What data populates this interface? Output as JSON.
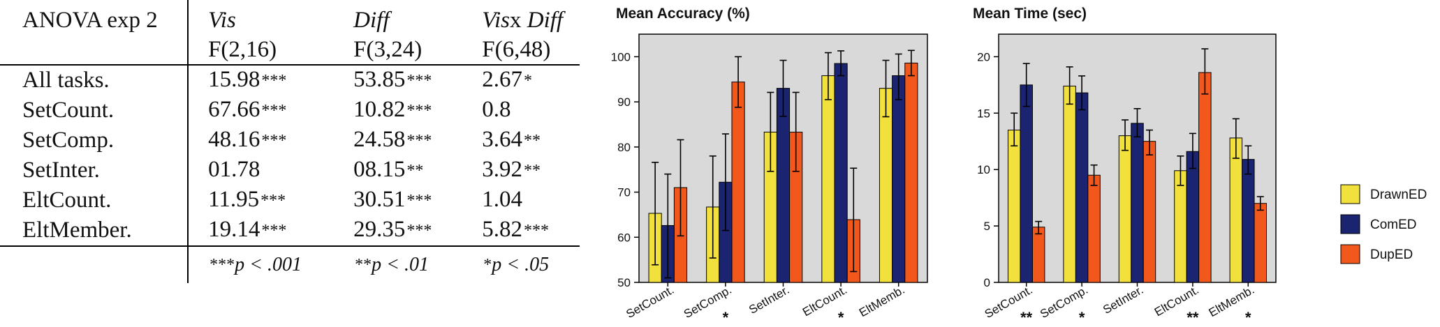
{
  "anova": {
    "header": {
      "title": "ANOVA exp 2",
      "vis": "Vis",
      "diff": "Diff",
      "interaction_a": "Vis",
      "interaction_b": "x",
      "interaction_c": "Diff",
      "df_vis": "F(2,16)",
      "df_diff": "F(3,24)",
      "df_interaction": "F(6,48)"
    },
    "rows": [
      {
        "label": "All tasks.",
        "vis": "15.98",
        "vis_sig": "***",
        "diff": "53.85",
        "diff_sig": "***",
        "inter": "2.67",
        "inter_sig": "*"
      },
      {
        "label": "SetCount.",
        "vis": "67.66",
        "vis_sig": "***",
        "diff": "10.82",
        "diff_sig": "***",
        "inter": "0.8",
        "inter_sig": ""
      },
      {
        "label": "SetComp.",
        "vis": "48.16",
        "vis_sig": "***",
        "diff": "24.58",
        "diff_sig": "***",
        "inter": "3.64",
        "inter_sig": "**"
      },
      {
        "label": "SetInter.",
        "vis": "01.78",
        "vis_sig": "",
        "diff": "08.15",
        "diff_sig": "**",
        "inter": "3.92",
        "inter_sig": "**"
      },
      {
        "label": "EltCount.",
        "vis": "11.95",
        "vis_sig": "***",
        "diff": "30.51",
        "diff_sig": "***",
        "inter": "1.04",
        "inter_sig": ""
      },
      {
        "label": "EltMember.",
        "vis": "19.14",
        "vis_sig": "***",
        "diff": "29.35",
        "diff_sig": "***",
        "inter": "5.82",
        "inter_sig": "***"
      }
    ],
    "footnotes": {
      "f1_stars": "***",
      "f1_text": "p < .001",
      "f2_stars": "**",
      "f2_text": "p < .01",
      "f3_stars": "*",
      "f3_text": "p < .05"
    }
  },
  "colors": {
    "DrawnED": "#f2e03c",
    "ComED": "#1a2470",
    "DupED": "#f2571c",
    "plot_bg": "#d9d9d9"
  },
  "chart_data": [
    {
      "type": "bar",
      "title": "Mean Accuracy (%)",
      "categories": [
        "SetCount.",
        "SetComp.",
        "SetInter.",
        "EltCount.",
        "EltMemb."
      ],
      "significance": [
        "",
        "*",
        "",
        "*",
        ""
      ],
      "ylim": [
        50,
        105
      ],
      "yticks": [
        50,
        60,
        70,
        80,
        90,
        100
      ],
      "series": [
        {
          "name": "DrawnED",
          "values": [
            65.3,
            66.7,
            83.3,
            95.8,
            93.0
          ],
          "err_low": [
            53.9,
            55.4,
            74.6,
            90.5,
            86.7
          ],
          "err_high": [
            76.6,
            78.0,
            92.1,
            100.9,
            99.2
          ]
        },
        {
          "name": "ComED",
          "values": [
            62.6,
            72.2,
            93.0,
            98.5,
            95.8
          ],
          "err_low": [
            51.0,
            61.5,
            86.8,
            95.8,
            90.5
          ],
          "err_high": [
            74.0,
            82.9,
            99.2,
            101.3,
            100.6
          ]
        },
        {
          "name": "DupED",
          "values": [
            71.0,
            94.4,
            83.3,
            63.9,
            98.6
          ],
          "err_low": [
            60.3,
            88.8,
            74.6,
            52.4,
            95.8
          ],
          "err_high": [
            81.6,
            100.0,
            92.1,
            75.3,
            101.4
          ]
        }
      ]
    },
    {
      "type": "bar",
      "title": "Mean Time (sec)",
      "categories": [
        "SetCount.",
        "SetComp.",
        "SetInter.",
        "EltCount.",
        "EltMemb."
      ],
      "significance": [
        "**",
        "*",
        "",
        "**",
        "*"
      ],
      "ylim": [
        0,
        22
      ],
      "yticks": [
        0,
        5,
        10,
        15,
        20
      ],
      "series": [
        {
          "name": "DrawnED",
          "values": [
            13.5,
            17.4,
            13.0,
            9.9,
            12.8
          ],
          "err_low": [
            12.1,
            15.8,
            11.7,
            8.6,
            11.0
          ],
          "err_high": [
            15.0,
            19.1,
            14.4,
            11.2,
            14.5
          ]
        },
        {
          "name": "ComED",
          "values": [
            17.5,
            16.8,
            14.1,
            11.6,
            10.9
          ],
          "err_low": [
            15.6,
            15.3,
            12.9,
            10.1,
            9.6
          ],
          "err_high": [
            19.4,
            18.3,
            15.4,
            13.2,
            12.1
          ]
        },
        {
          "name": "DupED",
          "values": [
            4.9,
            9.5,
            12.5,
            18.6,
            7.0
          ],
          "err_low": [
            4.3,
            8.6,
            11.3,
            16.7,
            6.4
          ],
          "err_high": [
            5.4,
            10.4,
            13.5,
            20.7,
            7.6
          ]
        }
      ]
    }
  ],
  "legend": {
    "items": [
      "DrawnED",
      "ComED",
      "DupED"
    ]
  }
}
